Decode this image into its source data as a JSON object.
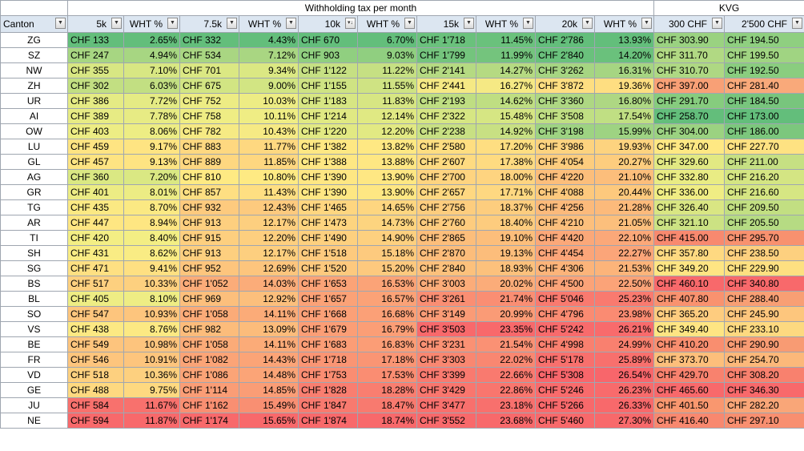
{
  "group_headers": {
    "withholding": "Withholding tax per month",
    "kvg": "KVG"
  },
  "columns": [
    "Canton",
    "5k",
    "WHT %",
    "7.5k",
    "WHT %",
    "10k",
    "WHT %",
    "15k",
    "WHT %",
    "20k",
    "WHT %",
    "300 CHF",
    "2'500 CHF"
  ],
  "filter_icons": [
    "dropdown-arrow",
    "dropdown-arrow",
    "dropdown-arrow",
    "dropdown-arrow",
    "dropdown-arrow",
    "sort-ascending-filter",
    "dropdown-arrow",
    "dropdown-arrow",
    "dropdown-arrow",
    "dropdown-arrow",
    "dropdown-arrow",
    "dropdown-arrow",
    "dropdown-arrow"
  ],
  "rows": [
    {
      "canton": "ZG",
      "c": [
        "CHF 133",
        "2.65%",
        "CHF 332",
        "4.43%",
        "CHF 670",
        "6.70%",
        "CHF 1'718",
        "11.45%",
        "CHF 2'786",
        "13.93%",
        "CHF 303.90",
        "CHF 194.50"
      ],
      "bg": [
        "#63be7b",
        "#63be7b",
        "#63be7b",
        "#63be7b",
        "#63be7b",
        "#63be7b",
        "#6ac17c",
        "#6ac17c",
        "#63be7b",
        "#63be7b",
        "#9ad281",
        "#8fcf80"
      ]
    },
    {
      "canton": "SZ",
      "c": [
        "CHF 247",
        "4.94%",
        "CHF 534",
        "7.12%",
        "CHF 903",
        "9.03%",
        "CHF 1'799",
        "11.99%",
        "CHF 2'840",
        "14.20%",
        "CHF 311.70",
        "CHF 199.50"
      ],
      "bg": [
        "#a7d682",
        "#a7d682",
        "#a9d682",
        "#a9d682",
        "#90cf80",
        "#90cf80",
        "#74c47d",
        "#74c47d",
        "#6ac17c",
        "#6ac17c",
        "#b1d983",
        "#a0d482"
      ]
    },
    {
      "canton": "NW",
      "c": [
        "CHF 355",
        "7.10%",
        "CHF 701",
        "9.34%",
        "CHF 1'122",
        "11.22%",
        "CHF 2'141",
        "14.27%",
        "CHF 3'262",
        "16.31%",
        "CHF 310.70",
        "CHF 192.50"
      ],
      "bg": [
        "#d8e783",
        "#d8e783",
        "#dbe883",
        "#dbe883",
        "#c6e083",
        "#c6e083",
        "#b5da82",
        "#b5da82",
        "#a6d582",
        "#a6d582",
        "#aed883",
        "#8acd7f"
      ]
    },
    {
      "canton": "ZH",
      "c": [
        "CHF 302",
        "6.03%",
        "CHF 675",
        "9.00%",
        "CHF 1'155",
        "11.55%",
        "CHF 2'441",
        "16.27%",
        "CHF 3'872",
        "19.36%",
        "CHF 397.00",
        "CHF 281.40"
      ],
      "bg": [
        "#c2df82",
        "#c2df82",
        "#d2e583",
        "#d2e583",
        "#cfe383",
        "#cfe383",
        "#f5e984",
        "#f5e984",
        "#fede81",
        "#fede81",
        "#f8a076",
        "#f9a97a"
      ]
    },
    {
      "canton": "UR",
      "c": [
        "CHF 386",
        "7.72%",
        "CHF 752",
        "10.03%",
        "CHF 1'183",
        "11.83%",
        "CHF 2'193",
        "14.62%",
        "CHF 3'360",
        "16.80%",
        "CHF 291.70",
        "CHF 184.50"
      ],
      "bg": [
        "#e5eb84",
        "#e5eb84",
        "#edec84",
        "#edec84",
        "#d7e683",
        "#d7e683",
        "#bfde82",
        "#bfde82",
        "#aed783",
        "#aed783",
        "#86cc7e",
        "#78c57d"
      ]
    },
    {
      "canton": "AI",
      "c": [
        "CHF 389",
        "7.78%",
        "CHF 758",
        "10.11%",
        "CHF 1'214",
        "12.14%",
        "CHF 2'322",
        "15.48%",
        "CHF 3'508",
        "17.54%",
        "CHF 258.70",
        "CHF 173.00"
      ],
      "bg": [
        "#e7eb84",
        "#e7eb84",
        "#efed84",
        "#efed84",
        "#e0e983",
        "#e0e983",
        "#d6e683",
        "#d6e683",
        "#c0df83",
        "#c0df83",
        "#63be7b",
        "#63be7b"
      ]
    },
    {
      "canton": "OW",
      "c": [
        "CHF 403",
        "8.06%",
        "CHF 782",
        "10.43%",
        "CHF 1'220",
        "12.20%",
        "CHF 2'238",
        "14.92%",
        "CHF 3'198",
        "15.99%",
        "CHF 304.00",
        "CHF 186.00"
      ],
      "bg": [
        "#eded84",
        "#eded84",
        "#f6ea84",
        "#f6ea84",
        "#e2e983",
        "#e2e983",
        "#c8e083",
        "#c8e083",
        "#9ed382",
        "#9ed382",
        "#9bd281",
        "#7cc77d"
      ]
    },
    {
      "canton": "LU",
      "c": [
        "CHF 459",
        "9.17%",
        "CHF 883",
        "11.77%",
        "CHF 1'382",
        "13.82%",
        "CHF 2'580",
        "17.20%",
        "CHF 3'986",
        "19.93%",
        "CHF 347.00",
        "CHF 227.70"
      ],
      "bg": [
        "#fee482",
        "#fee482",
        "#fed880",
        "#fed880",
        "#fee883",
        "#fee883",
        "#fede81",
        "#fede81",
        "#fdd37f",
        "#fdd37f",
        "#fee883",
        "#fee282"
      ]
    },
    {
      "canton": "GL",
      "c": [
        "CHF 457",
        "9.13%",
        "CHF 889",
        "11.85%",
        "CHF 1'388",
        "13.88%",
        "CHF 2'607",
        "17.38%",
        "CHF 4'054",
        "20.27%",
        "CHF 329.60",
        "CHF 211.00"
      ],
      "bg": [
        "#fee482",
        "#fee482",
        "#fed780",
        "#fed780",
        "#fee783",
        "#fee783",
        "#fedb81",
        "#fedb81",
        "#fdcd7e",
        "#fdcd7e",
        "#e2e983",
        "#c6e083"
      ]
    },
    {
      "canton": "AG",
      "c": [
        "CHF 360",
        "7.20%",
        "CHF 810",
        "10.80%",
        "CHF 1'390",
        "13.90%",
        "CHF 2'700",
        "18.00%",
        "CHF 4'220",
        "21.10%",
        "CHF 332.80",
        "CHF 216.20"
      ],
      "bg": [
        "#dae883",
        "#dae883",
        "#feea83",
        "#feea83",
        "#fee783",
        "#fee783",
        "#fed480",
        "#fed480",
        "#fcbe7b",
        "#fcbe7b",
        "#e9ec84",
        "#d4e583"
      ]
    },
    {
      "canton": "GR",
      "c": [
        "CHF 401",
        "8.01%",
        "CHF 857",
        "11.43%",
        "CHF 1'390",
        "13.90%",
        "CHF 2'657",
        "17.71%",
        "CHF 4'088",
        "20.44%",
        "CHF 336.00",
        "CHF 216.60"
      ],
      "bg": [
        "#ecec84",
        "#ecec84",
        "#fedf82",
        "#fedf82",
        "#fee783",
        "#fee783",
        "#fed881",
        "#fed881",
        "#fdc97d",
        "#fdc97d",
        "#f0ed84",
        "#d6e683"
      ]
    },
    {
      "canton": "TG",
      "c": [
        "CHF 435",
        "8.70%",
        "CHF 932",
        "12.43%",
        "CHF 1'465",
        "14.65%",
        "CHF 2'756",
        "18.37%",
        "CHF 4'256",
        "21.28%",
        "CHF 326.40",
        "CHF 209.50"
      ],
      "bg": [
        "#fbe983",
        "#fbe983",
        "#fdca7e",
        "#fdca7e",
        "#fed680",
        "#fed680",
        "#fdcd7e",
        "#fdcd7e",
        "#fcba7b",
        "#fcba7b",
        "#d9e683",
        "#c2df82"
      ]
    },
    {
      "canton": "AR",
      "c": [
        "CHF 447",
        "8.94%",
        "CHF 913",
        "12.17%",
        "CHF 1'473",
        "14.73%",
        "CHF 2'760",
        "18.40%",
        "CHF 4'210",
        "21.05%",
        "CHF 321.10",
        "CHF 205.50"
      ],
      "bg": [
        "#fee682",
        "#fee682",
        "#fdcf7f",
        "#fdcf7f",
        "#fdd47f",
        "#fdd47f",
        "#fdcc7e",
        "#fdcc7e",
        "#fcbf7c",
        "#fcbf7c",
        "#cce283",
        "#b6db83"
      ]
    },
    {
      "canton": "TI",
      "c": [
        "CHF 420",
        "8.40%",
        "CHF 915",
        "12.20%",
        "CHF 1'490",
        "14.90%",
        "CHF 2'865",
        "19.10%",
        "CHF 4'420",
        "22.10%",
        "CHF 415.00",
        "CHF 295.70"
      ],
      "bg": [
        "#f3ee84",
        "#f3ee84",
        "#fdcf7f",
        "#fdcf7f",
        "#fdd07f",
        "#fdd07f",
        "#fcbe7b",
        "#fcbe7b",
        "#fba879",
        "#fba879",
        "#f8896f",
        "#f8916f"
      ]
    },
    {
      "canton": "SH",
      "c": [
        "CHF 431",
        "8.62%",
        "CHF 913",
        "12.17%",
        "CHF 1'518",
        "15.18%",
        "CHF 2'870",
        "19.13%",
        "CHF 4'454",
        "22.27%",
        "CHF 357.80",
        "CHF 238.50"
      ],
      "bg": [
        "#f9ec84",
        "#f9ec84",
        "#fdcf7f",
        "#fdcf7f",
        "#fdca7e",
        "#fdca7e",
        "#fcbd7b",
        "#fcbd7b",
        "#fba579",
        "#fba579",
        "#fed981",
        "#fdd07f"
      ]
    },
    {
      "canton": "SG",
      "c": [
        "CHF 471",
        "9.41%",
        "CHF 952",
        "12.69%",
        "CHF 1'520",
        "15.20%",
        "CHF 2'840",
        "18.93%",
        "CHF 4'306",
        "21.53%",
        "CHF 349.20",
        "CHF 229.90"
      ],
      "bg": [
        "#fee082",
        "#fee082",
        "#fdc57d",
        "#fdc57d",
        "#fdc97e",
        "#fdc97e",
        "#fcc17c",
        "#fcc17c",
        "#fcb47a",
        "#fcb47a",
        "#fee583",
        "#fde081"
      ]
    },
    {
      "canton": "BS",
      "c": [
        "CHF 517",
        "10.33%",
        "CHF 1'052",
        "14.03%",
        "CHF 1'653",
        "16.53%",
        "CHF 3'003",
        "20.02%",
        "CHF 4'500",
        "22.50%",
        "CHF 460.10",
        "CHF 340.80"
      ],
      "bg": [
        "#fdd07f",
        "#fdd07f",
        "#fbac79",
        "#fbac79",
        "#fba377",
        "#fba377",
        "#fbac79",
        "#fbac79",
        "#fba378",
        "#fba378",
        "#f8696b",
        "#f8696b"
      ]
    },
    {
      "canton": "BL",
      "c": [
        "CHF 405",
        "8.10%",
        "CHF 969",
        "12.92%",
        "CHF 1'657",
        "16.57%",
        "CHF 3'261",
        "21.74%",
        "CHF 5'046",
        "25.23%",
        "CHF 407.80",
        "CHF 288.40"
      ],
      "bg": [
        "#eeed84",
        "#eeed84",
        "#fcbf7c",
        "#fcbf7c",
        "#fba277",
        "#fba277",
        "#fa8e73",
        "#fa8e73",
        "#f97a6f",
        "#f97a6f",
        "#f9926f",
        "#f89f74"
      ]
    },
    {
      "canton": "SO",
      "c": [
        "CHF 547",
        "10.93%",
        "CHF 1'058",
        "14.11%",
        "CHF 1'668",
        "16.68%",
        "CHF 3'149",
        "20.99%",
        "CHF 4'796",
        "23.98%",
        "CHF 365.20",
        "CHF 245.90"
      ],
      "bg": [
        "#fdc57d",
        "#fdc57d",
        "#fbab78",
        "#fbab78",
        "#fba077",
        "#fba077",
        "#fa9b76",
        "#fa9b76",
        "#fa8b72",
        "#fa8b72",
        "#fecc7f",
        "#fdc67d"
      ]
    },
    {
      "canton": "VS",
      "c": [
        "CHF 438",
        "8.76%",
        "CHF 982",
        "13.09%",
        "CHF 1'679",
        "16.79%",
        "CHF 3'503",
        "23.35%",
        "CHF 5'242",
        "26.21%",
        "CHF 349.40",
        "CHF 233.10"
      ],
      "bg": [
        "#fce983",
        "#fce983",
        "#fcbc7b",
        "#fcbc7b",
        "#fb9e76",
        "#fb9e76",
        "#f8696b",
        "#f8696b",
        "#f86b6c",
        "#f86b6c",
        "#fee583",
        "#fdd980"
      ]
    },
    {
      "canton": "BE",
      "c": [
        "CHF 549",
        "10.98%",
        "CHF 1'058",
        "14.11%",
        "CHF 1'683",
        "16.83%",
        "CHF 3'231",
        "21.54%",
        "CHF 4'998",
        "24.99%",
        "CHF 410.20",
        "CHF 290.90"
      ],
      "bg": [
        "#fdc47d",
        "#fdc47d",
        "#fbab78",
        "#fbab78",
        "#fb9d76",
        "#fb9d76",
        "#fa9174",
        "#fa9174",
        "#f9806f",
        "#f9806f",
        "#f98e6f",
        "#f89b73"
      ]
    },
    {
      "canton": "FR",
      "c": [
        "CHF 546",
        "10.91%",
        "CHF 1'082",
        "14.43%",
        "CHF 1'718",
        "17.18%",
        "CHF 3'303",
        "22.02%",
        "CHF 5'178",
        "25.89%",
        "CHF 373.70",
        "CHF 254.70"
      ],
      "bg": [
        "#fdc57d",
        "#fdc57d",
        "#fba477",
        "#fba477",
        "#fa9574",
        "#fa9574",
        "#f98771",
        "#f98771",
        "#f8706d",
        "#f8706d",
        "#fdbf7b",
        "#fcb87a"
      ]
    },
    {
      "canton": "VD",
      "c": [
        "CHF 518",
        "10.36%",
        "CHF 1'086",
        "14.48%",
        "CHF 1'753",
        "17.53%",
        "CHF 3'399",
        "22.66%",
        "CHF 5'308",
        "26.54%",
        "CHF 429.70",
        "CHF 308.20"
      ],
      "bg": [
        "#fdd07f",
        "#fdd07f",
        "#fba477",
        "#fba477",
        "#fa8d72",
        "#fa8d72",
        "#f97a6f",
        "#f97a6f",
        "#f8666b",
        "#f8666b",
        "#f8826e",
        "#f8816e"
      ]
    },
    {
      "canton": "GE",
      "c": [
        "CHF 488",
        "9.75%",
        "CHF 1'114",
        "14.85%",
        "CHF 1'828",
        "18.28%",
        "CHF 3'429",
        "22.86%",
        "CHF 5'246",
        "26.23%",
        "CHF 465.60",
        "CHF 346.30"
      ],
      "bg": [
        "#fed980",
        "#fed980",
        "#fa9d76",
        "#fa9d76",
        "#f97e70",
        "#f97e70",
        "#f9766e",
        "#f9766e",
        "#f86b6c",
        "#f86b6c",
        "#f8696b",
        "#f8696b"
      ]
    },
    {
      "canton": "JU",
      "c": [
        "CHF 584",
        "11.67%",
        "CHF 1'162",
        "15.49%",
        "CHF 1'847",
        "18.47%",
        "CHF 3'477",
        "23.18%",
        "CHF 5'266",
        "26.33%",
        "CHF 401.50",
        "CHF 282.20"
      ],
      "bg": [
        "#f8716d",
        "#f8716d",
        "#f98f72",
        "#f98f72",
        "#f87a6f",
        "#f87a6f",
        "#f8706d",
        "#f8706d",
        "#f8696b",
        "#f8696b",
        "#f9976f",
        "#f9a678"
      ]
    },
    {
      "canton": "NE",
      "c": [
        "CHF 594",
        "11.87%",
        "CHF 1'174",
        "15.65%",
        "CHF 1'874",
        "18.74%",
        "CHF 3'552",
        "23.68%",
        "CHF 5'460",
        "27.30%",
        "CHF 416.40",
        "CHF 297.10"
      ],
      "bg": [
        "#f8696b",
        "#f8696b",
        "#f8696b",
        "#f8696b",
        "#f8696b",
        "#f8696b",
        "#f8696b",
        "#f8696b",
        "#f8696b",
        "#f8696b",
        "#f8886f",
        "#f88f70"
      ]
    }
  ]
}
